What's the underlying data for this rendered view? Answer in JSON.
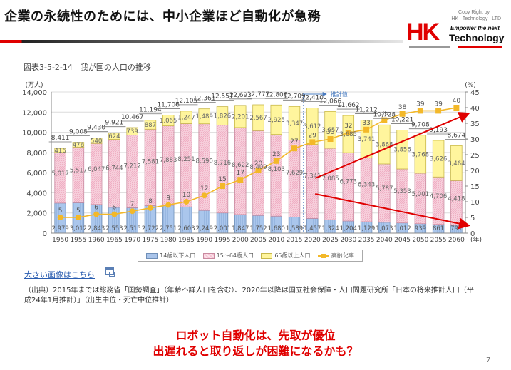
{
  "slide": {
    "title": "企業の永続性のためには、中小企業ほど自動化が急務",
    "logo": {
      "copyright_line1": "Copy Right by",
      "copyright_line2": "HK Technology LTD",
      "brand_mark": "HK",
      "tagline": "Empower the next",
      "brand_word": "Technology"
    },
    "figure_title": "図表3-5-2-14　我が国の人口の推移",
    "big_image_link": "大きい画像はこちら",
    "source_note": "（出典）2015年までは総務省「国勢調査」（年齢不詳人口を含む）、2020年以降は国立社会保障・人口問題研究所「日本の将来推計人口（平成24年1月推計）」（出生中位・死亡中位推計）",
    "callout_line1": "ロボット自動化は、先取が優位",
    "callout_line2": "出遅れると取り返しが困難になるかも？",
    "page_number": "7"
  },
  "chart_data": {
    "type": "bar",
    "stacked": true,
    "title": "図表3-5-2-14　我が国の人口の推移",
    "ylabel": "(万人)",
    "y2label": "(%)",
    "xlabel": "(年)",
    "ylim": [
      0,
      14000
    ],
    "y2lim": [
      0,
      45
    ],
    "yticks": [
      "0",
      "2,000",
      "4,000",
      "6,000",
      "8,000",
      "10,000",
      "12,000",
      "14,000"
    ],
    "y2ticks": [
      "0",
      "5",
      "10",
      "15",
      "20",
      "25",
      "30",
      "35",
      "40",
      "45"
    ],
    "grid": true,
    "projection_label": "推計値",
    "projection_start": "2020",
    "categories": [
      "1950",
      "1955",
      "1960",
      "1965",
      "1970",
      "1975",
      "1980",
      "1985",
      "1990",
      "1995",
      "2000",
      "2005",
      "2010",
      "2015",
      "2020",
      "2025",
      "2030",
      "2035",
      "2040",
      "2045",
      "2050",
      "2055",
      "2060"
    ],
    "totals": [
      "8,411",
      "9,008",
      "9,430",
      "9,921",
      "10,467",
      "11,194",
      "11,706",
      "12,105",
      "12,361",
      "12,557",
      "12,693",
      "12,777",
      "12,806",
      "12,709",
      "12,410",
      "12,066",
      "11,662",
      "11,212",
      "10,728",
      "10,221",
      "9,708",
      "9,193",
      "8,674"
    ],
    "series": [
      {
        "name": "14歳以下人口",
        "color": "#a9c4ea",
        "values": [
          2979,
          3012,
          2843,
          2553,
          2515,
          2722,
          2751,
          2603,
          2249,
          2001,
          1847,
          1752,
          1680,
          1589,
          1457,
          1324,
          1204,
          1129,
          1073,
          1012,
          939,
          861,
          791
        ]
      },
      {
        "name": "15～64歳人口",
        "color": "#f6c3d3",
        "values": [
          5017,
          5517,
          6047,
          6744,
          7212,
          7581,
          7883,
          8251,
          8590,
          8716,
          8622,
          8409,
          8103,
          7629,
          7341,
          7085,
          6773,
          6343,
          5787,
          5353,
          5001,
          4706,
          4418
        ]
      },
      {
        "name": "65歳以上人口",
        "color": "#fff59d",
        "values": [
          416,
          476,
          540,
          624,
          739,
          887,
          1065,
          1247,
          1489,
          1826,
          2201,
          2567,
          2925,
          3347,
          3612,
          3657,
          3685,
          3741,
          3868,
          3856,
          3768,
          3626,
          3464
        ]
      },
      {
        "name": "高齢化率",
        "type": "line",
        "axis": "right",
        "color": "#f3b829",
        "values": [
          5,
          5,
          6,
          6,
          7,
          8,
          9,
          10,
          12,
          15,
          17,
          20,
          23,
          27,
          29,
          30,
          32,
          33,
          36,
          38,
          39,
          39,
          40
        ]
      }
    ],
    "legend_position": "bottom",
    "annotations": [
      {
        "type": "arrow",
        "color": "#e00000",
        "description": "rising trend of 65+ ratio",
        "from": {
          "x": "2020",
          "y2": 17.5
        },
        "to": {
          "x": "2060",
          "y2": 38
        }
      },
      {
        "type": "arrow",
        "color": "#e00000",
        "description": "declining working-age population",
        "from": {
          "x": "2020",
          "y2": 12.5
        },
        "to": {
          "x": "2060",
          "y2": 2.5
        }
      }
    ]
  }
}
